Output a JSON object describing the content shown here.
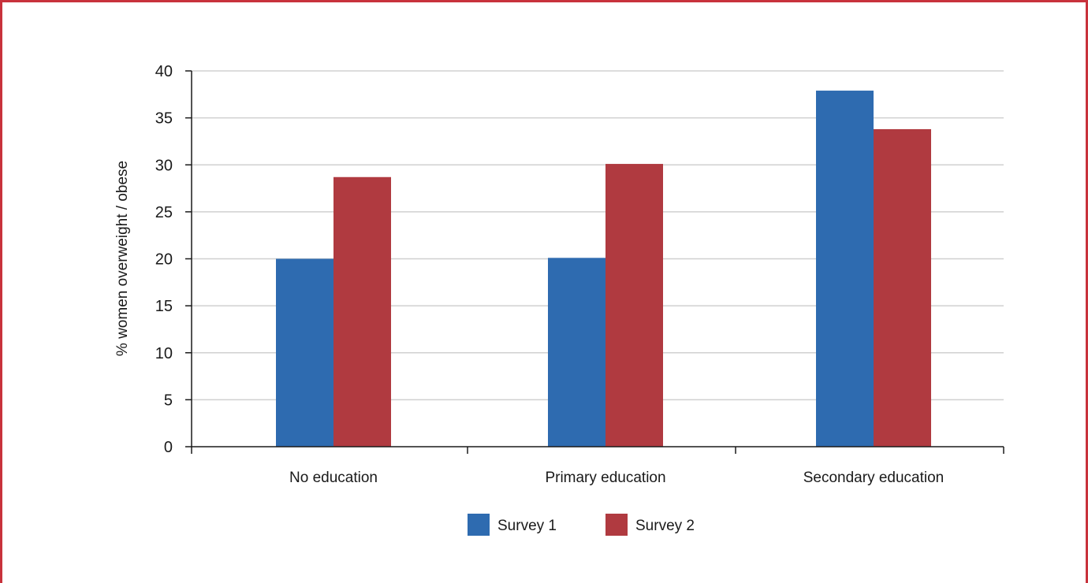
{
  "colors": {
    "frame": "#c8323c",
    "grid": "#d0d0d0",
    "axis": "#1a1a1a"
  },
  "chart_data": {
    "type": "bar",
    "title": "",
    "xlabel": "",
    "ylabel": "% women overweight / obese",
    "categories": [
      "No education",
      "Primary education",
      "Secondary education"
    ],
    "series": [
      {
        "name": "Survey 1",
        "color": "#2e6bb0",
        "values": [
          20.0,
          20.1,
          37.9
        ]
      },
      {
        "name": "Survey 2",
        "color": "#b03a40",
        "values": [
          28.7,
          30.1,
          33.8
        ]
      }
    ],
    "ylim": [
      0,
      40
    ],
    "yticks": [
      0,
      5,
      10,
      15,
      20,
      25,
      30,
      35,
      40
    ],
    "grid": true,
    "legend": "bottom-center"
  }
}
